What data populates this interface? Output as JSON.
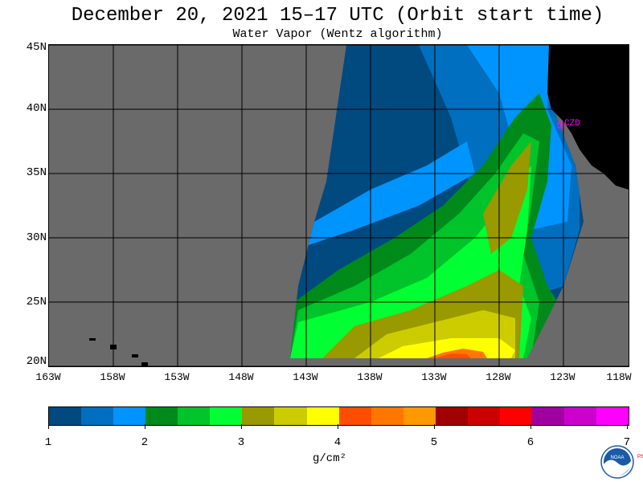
{
  "title": "December 20, 2021  15–17 UTC  (Orbit start time)",
  "subtitle": "Water Vapor (Wentz algorithm)",
  "map": {
    "latitude_labels": [
      "45N",
      "40N",
      "35N",
      "30N",
      "25N",
      "20N"
    ],
    "longitude_labels": [
      "163W",
      "158W",
      "153W",
      "148W",
      "143W",
      "138W",
      "133W",
      "128W",
      "123W",
      "118W"
    ],
    "station_label": "CZD",
    "background_color": "#6a6a6a",
    "land_color": "#000000",
    "grid_color": "#000000",
    "station_color": "#ff00ff"
  },
  "colorbar": {
    "colors": [
      "#004a80",
      "#006fc0",
      "#0094ff",
      "#008a1a",
      "#00c42a",
      "#00ff33",
      "#999900",
      "#cccc00",
      "#ffff00",
      "#ff4d00",
      "#ff7700",
      "#ff9900",
      "#a00000",
      "#cc0000",
      "#ff0000",
      "#a000a0",
      "#cc00cc",
      "#ff00ff"
    ],
    "tick_labels": [
      "1",
      "2",
      "3",
      "4",
      "5",
      "6",
      "7"
    ],
    "unit": "g/cm²",
    "range": [
      1,
      7
    ]
  },
  "logo": {
    "text": "NOAA",
    "side_text": "PSL",
    "icon": "noaa-logo-icon"
  }
}
